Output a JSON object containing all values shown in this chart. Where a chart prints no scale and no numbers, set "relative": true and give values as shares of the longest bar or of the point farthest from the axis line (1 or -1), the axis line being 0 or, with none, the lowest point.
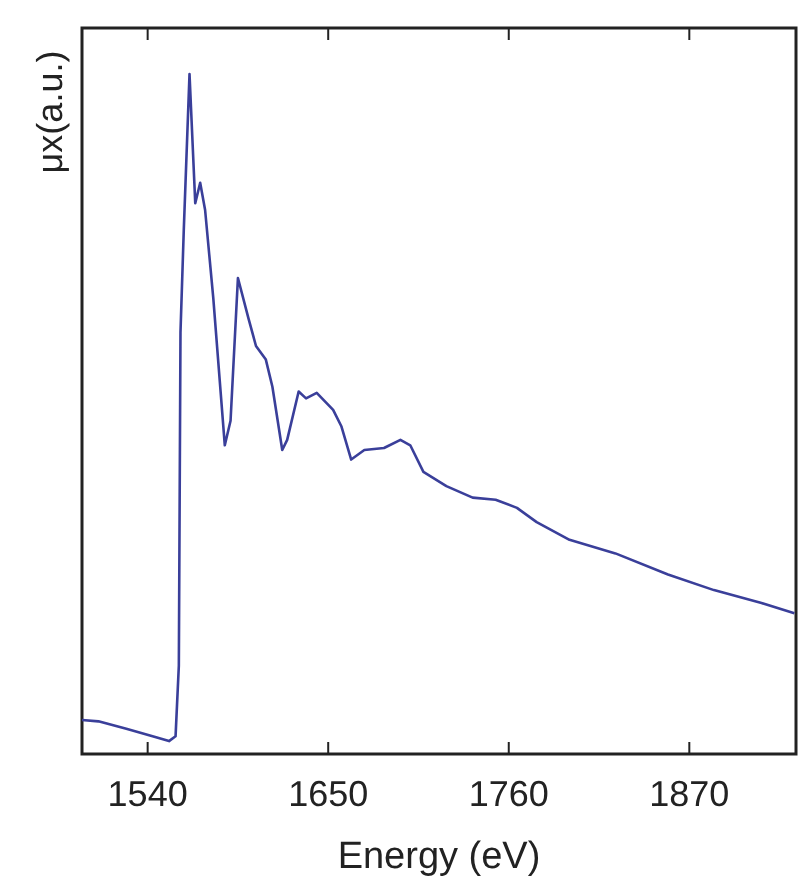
{
  "chart_data": {
    "type": "line",
    "xlabel": "Energy (eV)",
    "ylabel": "μx(a.u.)",
    "relative": true,
    "xlim": [
      1500,
      1935
    ],
    "xticks": [
      1540,
      1650,
      1760,
      1870
    ],
    "grid": false,
    "marker": "none",
    "line_style": "solid",
    "series": [
      {
        "color": "#3a3f9a",
        "x": [
          1500,
          1510,
          1527,
          1543,
          1553,
          1557,
          1559,
          1560,
          1562,
          1565.5,
          1569,
          1572,
          1575,
          1580,
          1587,
          1590.5,
          1595,
          1601.5,
          1606,
          1612,
          1616,
          1622,
          1625,
          1632,
          1636.5,
          1643,
          1653,
          1658,
          1664,
          1672,
          1684,
          1694,
          1700,
          1708,
          1722,
          1738,
          1752,
          1765,
          1777,
          1797,
          1825,
          1857,
          1885,
          1914,
          1934
        ],
        "values": [
          0.05,
          0.048,
          0.037,
          0.026,
          0.019,
          0.026,
          0.13,
          0.62,
          0.77,
          1.0,
          0.81,
          0.84,
          0.8,
          0.67,
          0.454,
          0.49,
          0.7,
          0.64,
          0.6,
          0.58,
          0.54,
          0.447,
          0.462,
          0.533,
          0.523,
          0.531,
          0.506,
          0.482,
          0.433,
          0.447,
          0.45,
          0.462,
          0.454,
          0.415,
          0.394,
          0.377,
          0.374,
          0.362,
          0.341,
          0.315,
          0.295,
          0.264,
          0.241,
          0.222,
          0.207
        ]
      }
    ]
  }
}
